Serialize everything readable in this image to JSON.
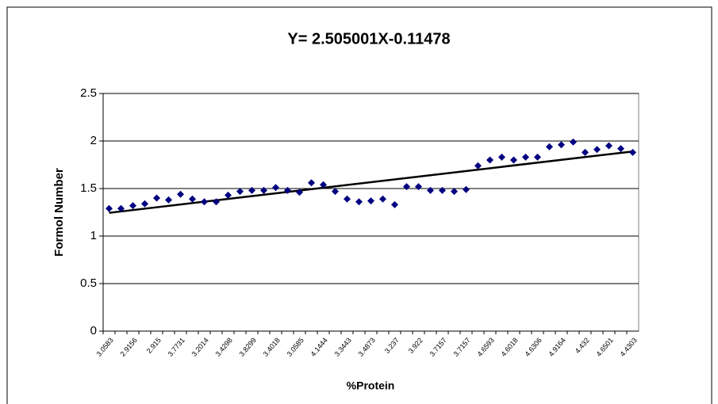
{
  "chart_data": {
    "type": "scatter",
    "title": "Y= 2.505001X-0.11478",
    "x_label": "%Protein",
    "y_label": "Formol Number",
    "categories": [
      "3.0583",
      null,
      "2.9156",
      null,
      "2.915",
      null,
      "3.7731",
      null,
      "3.2014",
      null,
      "3.4298",
      null,
      "3.8299",
      null,
      "3.4018",
      null,
      "3.0585",
      null,
      "4.1444",
      null,
      "3.3443",
      null,
      "3.4873",
      null,
      "3.237",
      null,
      "3.922",
      null,
      "3.7157",
      null,
      "3.7157",
      null,
      "4.6593",
      null,
      "4.6018",
      null,
      "4.6306",
      null,
      "4.9164",
      null,
      "4.432",
      null,
      "4.6501",
      null,
      "4.4303"
    ],
    "series": [
      {
        "name": "Formol Number",
        "color": "#000080",
        "values": [
          1.29,
          1.29,
          1.32,
          1.34,
          1.4,
          1.38,
          1.44,
          1.39,
          1.36,
          1.36,
          1.43,
          1.47,
          1.48,
          1.48,
          1.51,
          1.48,
          1.46,
          1.56,
          1.54,
          1.47,
          1.39,
          1.36,
          1.37,
          1.39,
          1.33,
          1.52,
          1.52,
          1.48,
          1.48,
          1.47,
          1.49,
          1.74,
          1.8,
          1.83,
          1.8,
          1.83,
          1.83,
          1.94,
          1.96,
          1.99,
          1.88,
          1.91,
          1.95,
          1.92,
          1.88
        ]
      }
    ],
    "trendline": "linear",
    "ylim": [
      0,
      2.5
    ],
    "yticks": [
      0,
      0.5,
      1,
      1.5,
      2,
      2.5
    ],
    "grid": true
  }
}
